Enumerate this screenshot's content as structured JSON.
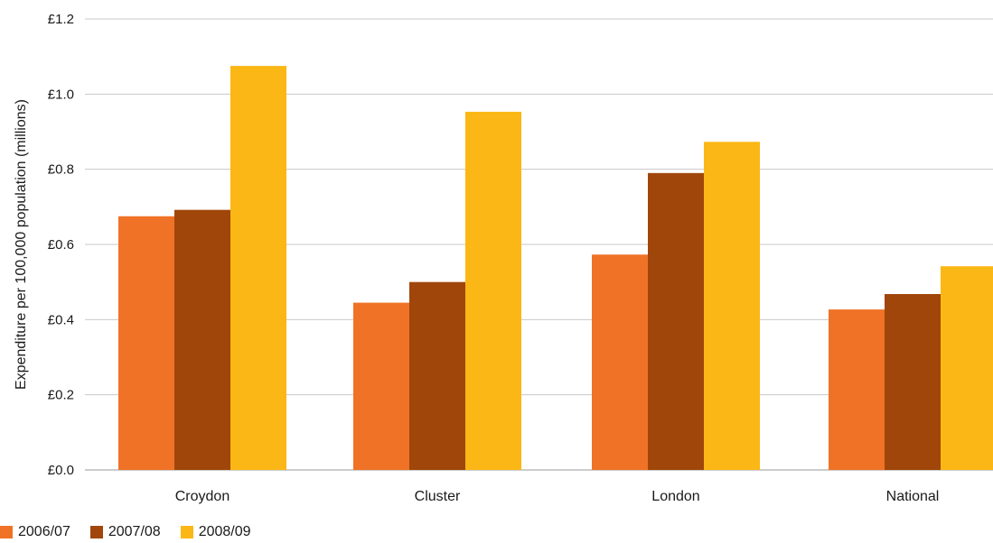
{
  "chart_data": {
    "type": "bar",
    "title": "",
    "xlabel": "",
    "ylabel": "Expenditure per 100,000 population (millions)",
    "categories": [
      "Croydon",
      "Cluster",
      "London",
      "National"
    ],
    "series": [
      {
        "name": "2006/07",
        "color": "#F07226",
        "values": [
          0.675,
          0.445,
          0.573,
          0.427
        ]
      },
      {
        "name": "2007/08",
        "color": "#A0460A",
        "values": [
          0.692,
          0.5,
          0.79,
          0.468
        ]
      },
      {
        "name": "2008/09",
        "color": "#FBB715",
        "values": [
          1.075,
          0.953,
          0.873,
          0.542
        ]
      }
    ],
    "ylim": [
      0,
      1.2
    ],
    "yticks": [
      0,
      0.2,
      0.4,
      0.6,
      0.8,
      1.0,
      1.2
    ],
    "ytick_labels": [
      "£0.0",
      "£0.2",
      "£0.4",
      "£0.6",
      "£0.8",
      "£1.0",
      "£1.2"
    ],
    "grid": true,
    "legend_position": "bottom-left"
  }
}
